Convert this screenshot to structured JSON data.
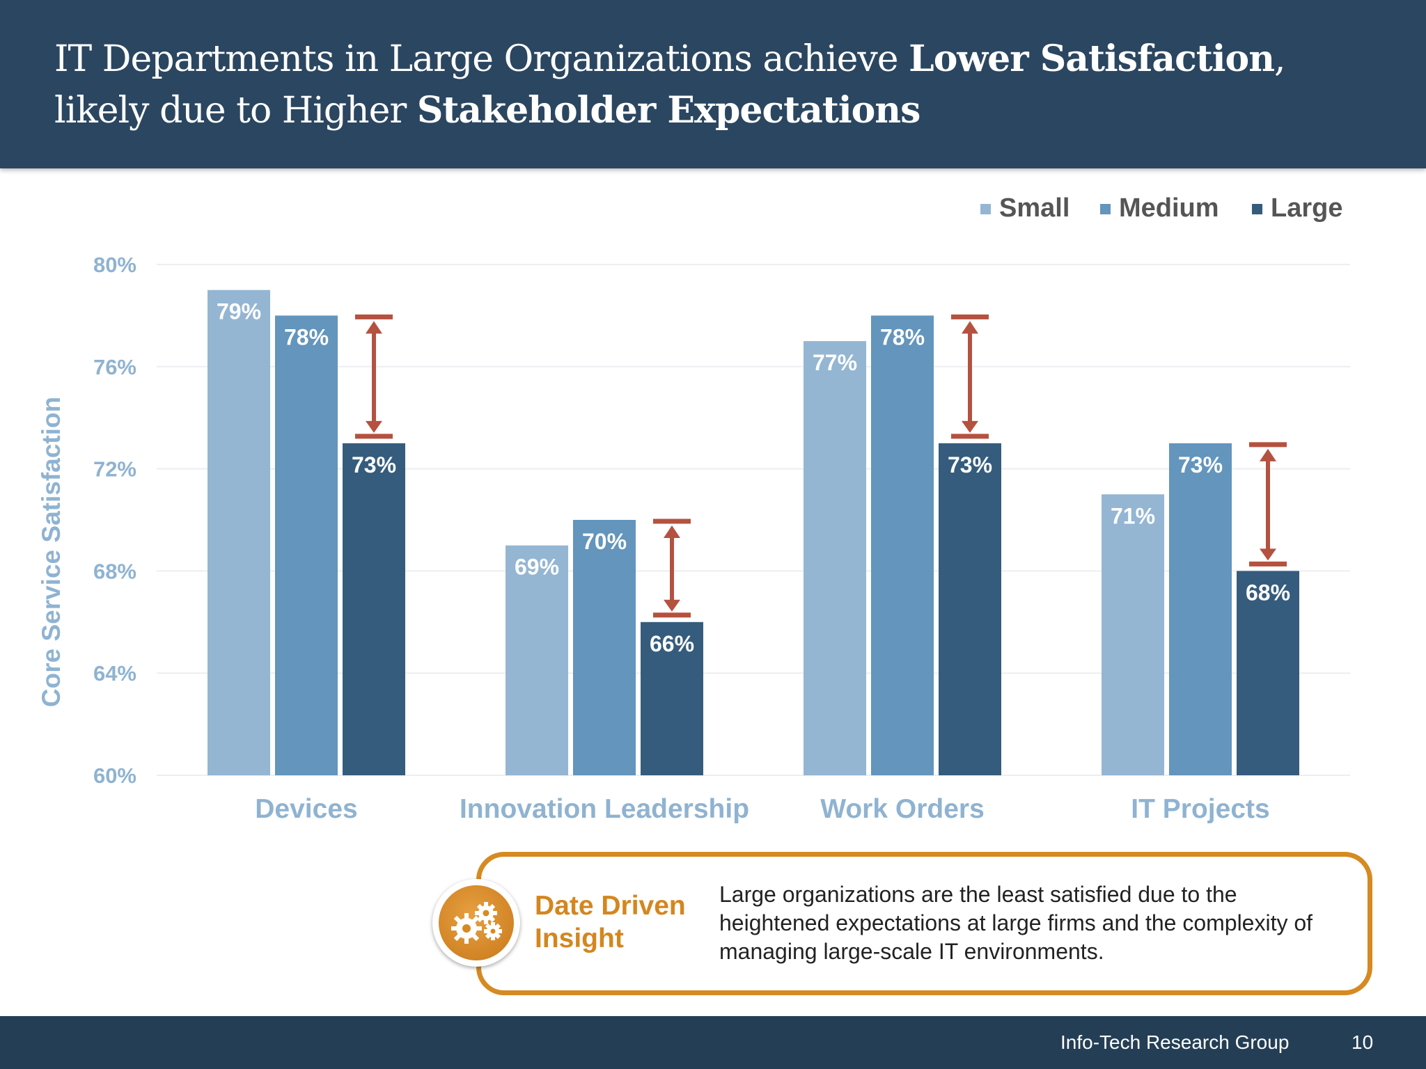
{
  "header": {
    "title_parts": [
      "IT Departments in Large Organizations achieve ",
      "Lower Satisfaction",
      ",",
      "likely due to Higher ",
      "Stakeholder Expectations"
    ]
  },
  "chart_data": {
    "type": "bar",
    "categories": [
      "Devices",
      "Innovation Leadership",
      "Work Orders",
      "IT Projects"
    ],
    "series": [
      {
        "name": "Small",
        "values": [
          79,
          69,
          77,
          71
        ],
        "labels": [
          "79%",
          "69%",
          "77%",
          "71%"
        ],
        "color": "#94b6d3"
      },
      {
        "name": "Medium",
        "values": [
          78,
          70,
          78,
          73
        ],
        "labels": [
          "78%",
          "70%",
          "78%",
          "73%"
        ],
        "color": "#6395bd"
      },
      {
        "name": "Large",
        "values": [
          73,
          66,
          73,
          68
        ],
        "labels": [
          "73%",
          "66%",
          "73%",
          "68%"
        ],
        "color": "#355c7d"
      }
    ],
    "ylabel": "Core Service Satisfaction",
    "ylim": [
      60,
      80
    ],
    "yticks": [
      60,
      64,
      68,
      72,
      76,
      80
    ],
    "ytick_labels": [
      "60%",
      "64%",
      "68%",
      "72%",
      "76%",
      "80%"
    ],
    "grid": true,
    "legend_position": "top-right",
    "annotation": "red double-headed arrows from Medium to Large in each category",
    "arrow_color": "#b5513f",
    "axis_text_color": "#8fb3d1"
  },
  "insight": {
    "heading_line1": "Date Driven",
    "heading_line2": "Insight",
    "body": "Large organizations are the least satisfied due to the heightened expectations at large firms and the complexity of managing large-scale IT environments.",
    "icon": "gears-icon",
    "accent": "#d68a22"
  },
  "footer": {
    "company": "Info-Tech Research Group",
    "page": "10"
  }
}
